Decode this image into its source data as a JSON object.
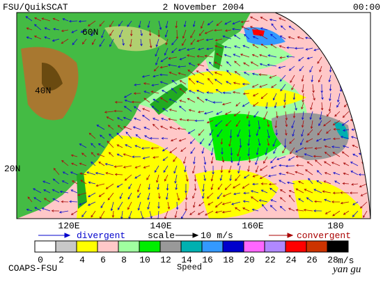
{
  "header": {
    "left": "FSU/QuikSCAT",
    "center": "2 November 2004",
    "right": "00:00"
  },
  "map": {
    "lat_labels": [
      "60N",
      "40N",
      "20N"
    ],
    "lon_labels": [
      "120E",
      "140E",
      "160E",
      "180"
    ]
  },
  "legend": {
    "divergent": "divergent",
    "scale": "scale",
    "scale_value": "10 m/s",
    "convergent": "convergent",
    "colorbar": {
      "colors": [
        "#ffffff",
        "#c8c8c8",
        "#ffff00",
        "#ffc8c8",
        "#a0ffa0",
        "#00ee00",
        "#999999",
        "#00b0b0",
        "#3399ff",
        "#0000cc",
        "#ff66ff",
        "#b088ff",
        "#ff0000",
        "#cc3300",
        "#000000"
      ],
      "ticks": [
        0,
        2,
        4,
        6,
        8,
        10,
        12,
        14,
        16,
        18,
        20,
        22,
        24,
        26,
        28
      ],
      "unit": "m/s",
      "label": "Speed"
    }
  },
  "footer": {
    "left": "COAPS-FSU",
    "right": "yan gu"
  }
}
